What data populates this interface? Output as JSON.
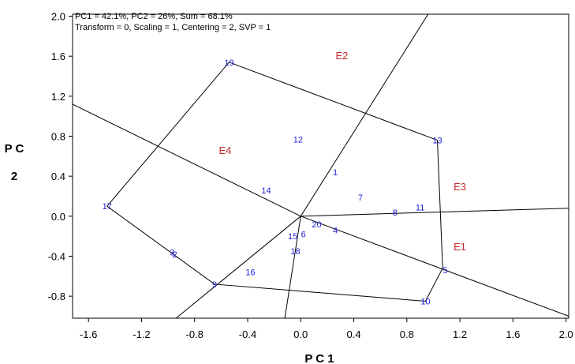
{
  "chart_data": {
    "type": "scatter",
    "title": "",
    "info_lines": [
      "PC1 = 42.1%, PC2 = 26%, Sum = 68.1%",
      "Transform = 0, Scaling = 1, Centering = 2, SVP = 1"
    ],
    "xlabel": "P C 1",
    "ylabel": "P C 2",
    "xlim": [
      -1.72,
      2.02
    ],
    "ylim": [
      -1.02,
      2.02
    ],
    "xticks": [
      -1.6,
      -1.2,
      -0.8,
      -0.4,
      0.0,
      0.4,
      0.8,
      1.2,
      1.6,
      2.0
    ],
    "xtick_labels": [
      "-1.6",
      "-1.2",
      "-0.8",
      "-0.4",
      "0.0",
      "0.4",
      "0.8",
      "1.2",
      "1.6",
      "2.0"
    ],
    "yticks": [
      -0.8,
      -0.4,
      0.0,
      0.4,
      0.8,
      1.2,
      1.6,
      2.0
    ],
    "ytick_labels": [
      "-0.8",
      "-0.4",
      "0.0",
      "0.4",
      "0.8",
      "1.2",
      "1.6",
      "2.0"
    ],
    "grid": false,
    "genotypes": [
      {
        "label": "1",
        "x": 0.26,
        "y": 0.44
      },
      {
        "label": "2",
        "x": -0.95,
        "y": -0.38
      },
      {
        "label": "3",
        "x": -0.97,
        "y": -0.36
      },
      {
        "label": "4",
        "x": 0.26,
        "y": -0.14
      },
      {
        "label": "5",
        "x": 1.09,
        "y": -0.54
      },
      {
        "label": "6",
        "x": 0.02,
        "y": -0.18
      },
      {
        "label": "7",
        "x": 0.45,
        "y": 0.19
      },
      {
        "label": "8",
        "x": 0.71,
        "y": 0.04
      },
      {
        "label": "9",
        "x": -0.65,
        "y": -0.68
      },
      {
        "label": "10",
        "x": 0.94,
        "y": -0.85
      },
      {
        "label": "11",
        "x": 0.9,
        "y": 0.09
      },
      {
        "label": "12",
        "x": -0.02,
        "y": 0.77
      },
      {
        "label": "13",
        "x": 1.03,
        "y": 0.76
      },
      {
        "label": "14",
        "x": -0.26,
        "y": 0.26
      },
      {
        "label": "15",
        "x": -0.06,
        "y": -0.2
      },
      {
        "label": "16",
        "x": -0.38,
        "y": -0.56
      },
      {
        "label": "17",
        "x": -1.46,
        "y": 0.1
      },
      {
        "label": "18",
        "x": -0.04,
        "y": -0.35
      },
      {
        "label": "19",
        "x": -0.54,
        "y": 1.54
      },
      {
        "label": "20",
        "x": 0.12,
        "y": -0.08
      }
    ],
    "environments": [
      {
        "label": "E1",
        "x": 1.2,
        "y": -0.3
      },
      {
        "label": "E2",
        "x": 0.31,
        "y": 1.61
      },
      {
        "label": "E3",
        "x": 1.2,
        "y": 0.3
      },
      {
        "label": "E4",
        "x": -0.57,
        "y": 0.66
      }
    ],
    "hull_polygon": [
      {
        "x": -0.54,
        "y": 1.54
      },
      {
        "x": 1.03,
        "y": 0.76
      },
      {
        "x": 1.07,
        "y": -0.52
      },
      {
        "x": 0.94,
        "y": -0.85
      },
      {
        "x": -0.65,
        "y": -0.68
      },
      {
        "x": -1.46,
        "y": 0.1
      }
    ],
    "sector_rays": [
      {
        "x1": 0.0,
        "y1": 0.0,
        "x2": 0.96,
        "y2": 2.02
      },
      {
        "x1": 0.0,
        "y1": 0.0,
        "x2": 2.02,
        "y2": 0.08
      },
      {
        "x1": 0.0,
        "y1": 0.0,
        "x2": 2.02,
        "y2": -1.0
      },
      {
        "x1": 0.0,
        "y1": 0.0,
        "x2": -0.12,
        "y2": -1.02
      },
      {
        "x1": 0.0,
        "y1": 0.0,
        "x2": -0.94,
        "y2": -1.02
      },
      {
        "x1": 0.0,
        "y1": 0.0,
        "x2": -1.72,
        "y2": 1.12
      }
    ]
  }
}
